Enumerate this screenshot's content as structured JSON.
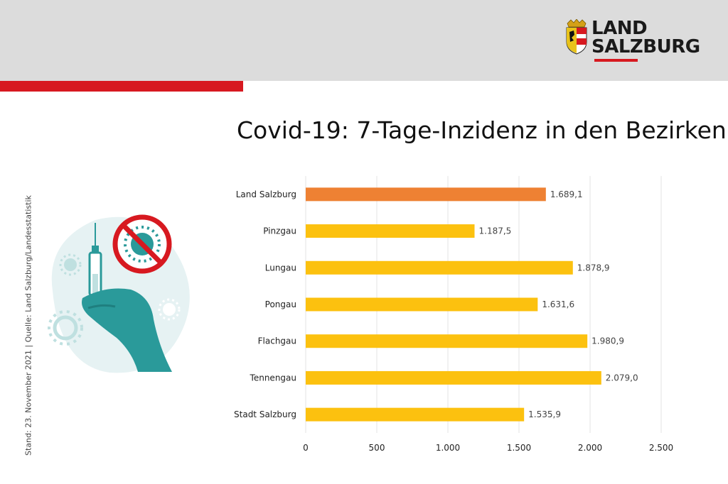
{
  "header": {
    "logo_line1": "LAND",
    "logo_line2": "SALZBURG",
    "brand_red": "#d71920"
  },
  "illustration": {
    "icons": [
      "syringe-icon",
      "no-virus-icon",
      "hand-icon",
      "virus-icon"
    ],
    "accent": "#2a9a9a"
  },
  "side_note": "Stand: 23. November 2021 | Quelle: Land Salzburg/Landesstatistik",
  "chart_data": {
    "type": "bar",
    "orientation": "horizontal",
    "title": "Covid-19: 7-Tage-Inzidenz in den Bezirken",
    "categories": [
      "Land Salzburg",
      "Pinzgau",
      "Lungau",
      "Pongau",
      "Flachgau",
      "Tennengau",
      "Stadt Salzburg"
    ],
    "values": [
      1689.1,
      1187.5,
      1878.9,
      1631.6,
      1980.9,
      2079.0,
      1535.9
    ],
    "value_labels": [
      "1.689,1",
      "1.187,5",
      "1.878,9",
      "1.631,6",
      "1.980,9",
      "2.079,0",
      "1.535,9"
    ],
    "bar_colors": [
      "#ee8133",
      "#fcc10f",
      "#fcc10f",
      "#fcc10f",
      "#fcc10f",
      "#fcc10f",
      "#fcc10f"
    ],
    "xlim": [
      0,
      2500
    ],
    "xticks": [
      0,
      500,
      1000,
      1500,
      2000,
      2500
    ],
    "xtick_labels": [
      "0",
      "500",
      "1.000",
      "1.500",
      "2.000",
      "2.500"
    ],
    "grid": true,
    "xlabel": "",
    "ylabel": ""
  }
}
